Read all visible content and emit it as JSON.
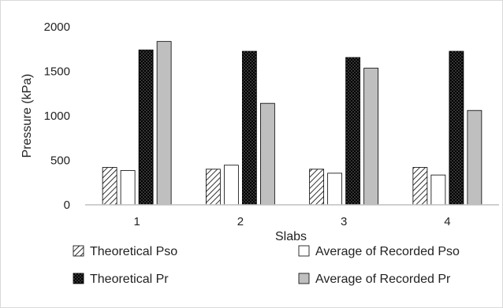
{
  "chart_data": {
    "type": "bar",
    "categories": [
      "1",
      "2",
      "3",
      "4"
    ],
    "xlabel": "Slabs",
    "ylabel": "Pressure (kPa)",
    "ylim": [
      0,
      2000
    ],
    "yticks": [
      "0",
      "500",
      "1000",
      "1500",
      "2000"
    ],
    "legend_placement": "bottom",
    "series": [
      {
        "name": "Theoretical Pso",
        "values": [
          420,
          400,
          400,
          420
        ],
        "fill": "hatch",
        "color": "#000000"
      },
      {
        "name": "Average of Recorded Pso",
        "values": [
          385,
          445,
          355,
          335
        ],
        "fill": "solid",
        "color": "#ffffff"
      },
      {
        "name": "Theoretical Pr",
        "values": [
          1740,
          1725,
          1655,
          1725
        ],
        "fill": "dots",
        "color": "#000000"
      },
      {
        "name": "Average of Recorded Pr",
        "values": [
          1835,
          1140,
          1535,
          1060
        ],
        "fill": "solid",
        "color": "#bfbfbf"
      }
    ]
  }
}
